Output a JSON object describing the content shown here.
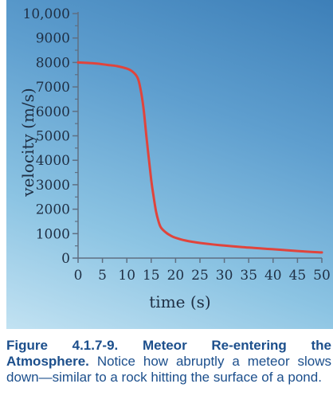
{
  "chart_data": {
    "type": "line",
    "x": [
      0,
      2,
      4,
      6,
      8,
      10,
      11,
      12,
      12.5,
      13,
      13.5,
      14,
      14.5,
      15,
      15.5,
      16,
      16.5,
      17,
      18,
      19,
      20,
      22,
      25,
      30,
      35,
      40,
      45,
      50
    ],
    "y": [
      8000,
      7980,
      7950,
      7900,
      7850,
      7750,
      7650,
      7450,
      7200,
      6700,
      6000,
      5000,
      4100,
      3200,
      2500,
      1900,
      1500,
      1250,
      1050,
      920,
      830,
      720,
      620,
      510,
      430,
      360,
      290,
      230
    ],
    "xlabel": "time (s)",
    "ylabel": "velocity (m/s)",
    "xlim": [
      0,
      50
    ],
    "ylim": [
      0,
      10000
    ],
    "xticks": [
      "0",
      "5",
      "10",
      "15",
      "20",
      "25",
      "30",
      "35",
      "40",
      "45",
      "50"
    ],
    "yticks": [
      "0",
      "1000",
      "2000",
      "3000",
      "4000",
      "5000",
      "6000",
      "7000",
      "8000",
      "9000",
      "10,000"
    ],
    "line_color": "#e0443c",
    "axis_color": "#5f6f82",
    "grid": false
  },
  "caption": {
    "label": "Figure 4.1.7-9. Meteor Re-entering the Atmosphere.",
    "text": " Notice how abruptly a meteor slows down—similar to a rock hitting the surface of a pond."
  }
}
